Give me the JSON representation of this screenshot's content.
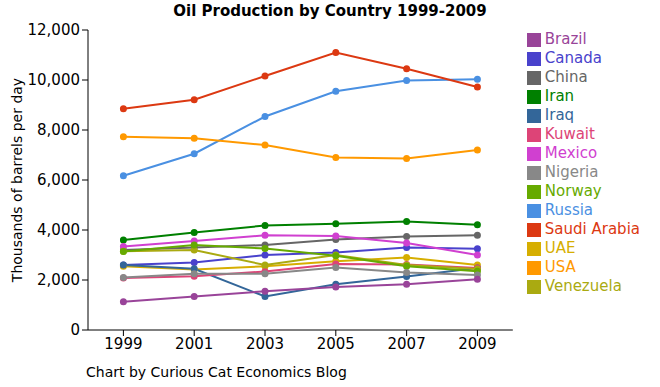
{
  "chart_data": {
    "type": "line",
    "title": "Oil Production by Country 1999-2009",
    "y_label": "Thousands of barrels per day",
    "annotations": [
      "Chart by Curious Cat Economics Blog"
    ],
    "x": [
      1999,
      2001,
      2003,
      2005,
      2007,
      2009
    ],
    "xlim": [
      1998,
      2010
    ],
    "xticks": [
      1999,
      2001,
      2003,
      2005,
      2007,
      2009
    ],
    "ylim": [
      0,
      12000
    ],
    "yticks": [
      0,
      {
        "value": 2000,
        "label": "2,000"
      },
      {
        "value": 4000,
        "label": "4,000"
      },
      {
        "value": 6000,
        "label": "6,000"
      },
      {
        "value": 8000,
        "label": "8,000"
      },
      {
        "value": 10000,
        "label": "10,000"
      },
      {
        "value": 12000,
        "label": "12,000"
      }
    ],
    "grid": false,
    "legend": "right",
    "marker": "circle",
    "series": [
      {
        "name": "Russia",
        "color": "#4a90e2",
        "values": [
          6170,
          7050,
          8540,
          9550,
          9980,
          10030
        ]
      },
      {
        "name": "Saudi Arabia",
        "color": "#dc3912",
        "values": [
          8850,
          9210,
          10160,
          11100,
          10450,
          9720
        ]
      },
      {
        "name": "USA",
        "color": "#ff9900",
        "values": [
          7730,
          7670,
          7400,
          6900,
          6860,
          7200
        ]
      },
      {
        "name": "Iran",
        "color": "#008000",
        "values": [
          3600,
          3900,
          4180,
          4250,
          4340,
          4210
        ]
      },
      {
        "name": "China",
        "color": "#666666",
        "values": [
          3200,
          3300,
          3400,
          3620,
          3740,
          3790
        ]
      },
      {
        "name": "Canada",
        "color": "#4942cc",
        "values": [
          2600,
          2700,
          3000,
          3100,
          3300,
          3250
        ]
      },
      {
        "name": "Mexico",
        "color": "#d040d0",
        "values": [
          3340,
          3560,
          3790,
          3760,
          3480,
          3000
        ]
      },
      {
        "name": "UAE",
        "color": "#d6ae00",
        "values": [
          2550,
          2420,
          2550,
          2750,
          2900,
          2600
        ]
      },
      {
        "name": "Iraq",
        "color": "#336699",
        "values": [
          2600,
          2450,
          1340,
          1830,
          2140,
          2480
        ]
      },
      {
        "name": "Kuwait",
        "color": "#dd4477",
        "values": [
          2080,
          2150,
          2340,
          2640,
          2620,
          2480
        ]
      },
      {
        "name": "Venezuela",
        "color": "#aaaa11",
        "values": [
          3150,
          3200,
          2600,
          3000,
          2600,
          2440
        ]
      },
      {
        "name": "Norway",
        "color": "#66aa00",
        "values": [
          3140,
          3400,
          3260,
          2970,
          2550,
          2350
        ]
      },
      {
        "name": "Nigeria",
        "color": "#888888",
        "values": [
          2100,
          2250,
          2250,
          2500,
          2300,
          2200
        ]
      },
      {
        "name": "Brazil",
        "color": "#994499",
        "values": [
          1130,
          1340,
          1550,
          1720,
          1830,
          2030
        ]
      }
    ]
  }
}
